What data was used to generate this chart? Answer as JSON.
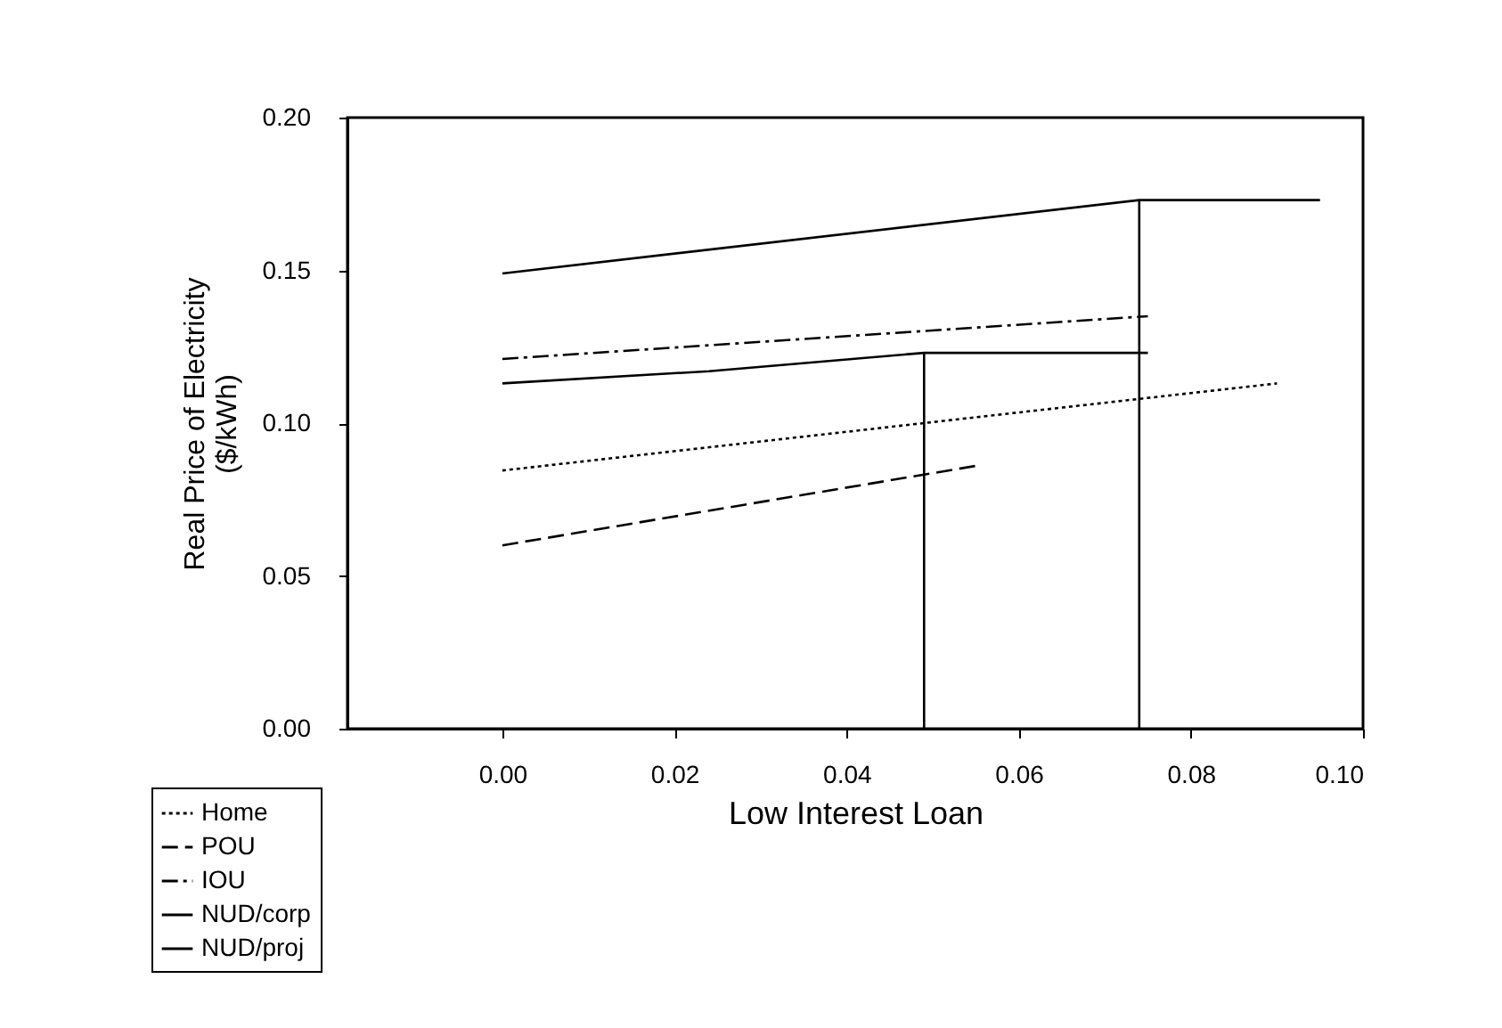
{
  "chart_data": {
    "type": "line",
    "xlabel": "Low Interest Loan",
    "ylabel": "Real Price of Electricity\n($/kWh)",
    "xlim": [
      -0.018,
      0.1
    ],
    "ylim": [
      0,
      0.2
    ],
    "xticks": [
      {
        "value": 0,
        "label": "0.00"
      },
      {
        "value": 0.02,
        "label": "0.02"
      },
      {
        "value": 0.04,
        "label": "0.04"
      },
      {
        "value": 0.06,
        "label": "0.06"
      },
      {
        "value": 0.08,
        "label": "0.08"
      },
      {
        "value": 0.1,
        "label": "0.10"
      }
    ],
    "yticks": [
      {
        "value": 0,
        "label": "0.00"
      },
      {
        "value": 0.05,
        "label": "0.05"
      },
      {
        "value": 0.1,
        "label": "0.10"
      },
      {
        "value": 0.15,
        "label": "0.15"
      },
      {
        "value": 0.2,
        "label": "0.20"
      }
    ],
    "grid": false,
    "legend": "bottom left",
    "marker": "none",
    "series": [
      {
        "name": "Home",
        "color": "#000000",
        "line_style": "dotted",
        "x": [
          0,
          0.09
        ],
        "values": [
          0.0845,
          0.113
        ]
      },
      {
        "name": "POU",
        "color": "#000000",
        "line_style": "dashed",
        "x": [
          0,
          0.055
        ],
        "values": [
          0.06,
          0.086
        ]
      },
      {
        "name": "IOU",
        "color": "#000000",
        "line_style": "dashdot",
        "x": [
          0,
          0.075
        ],
        "values": [
          0.121,
          0.135
        ]
      },
      {
        "name": "NUD/corp",
        "color": "#000000",
        "line_style": "solid",
        "x": [
          0,
          0.024,
          0.049,
          0.075
        ],
        "values": [
          0.113,
          0.117,
          0.123,
          0.123
        ]
      },
      {
        "name": "NUD/proj",
        "color": "#000000",
        "line_style": "solid",
        "x": [
          0,
          0.074,
          0.095
        ],
        "values": [
          0.149,
          0.173,
          0.173
        ]
      },
      {
        "color": "#000000",
        "line_style": "solid",
        "x": [
          0.049,
          0.049
        ],
        "values": [
          0,
          0.123
        ]
      },
      {
        "color": "#000000",
        "line_style": "solid",
        "x": [
          0.074,
          0.074
        ],
        "values": [
          0,
          0.173
        ]
      }
    ]
  }
}
